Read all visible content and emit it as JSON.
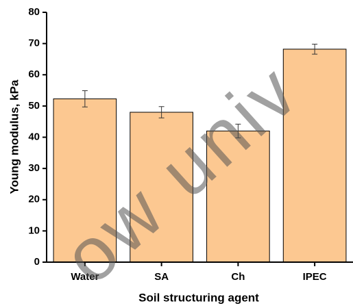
{
  "chart_data": {
    "type": "bar",
    "x_label": "Soil structuring agent",
    "y_label": "Young modulus, kPa",
    "categories": [
      "Water",
      "SA",
      "Ch",
      "IPEC"
    ],
    "values": [
      52.3,
      48,
      42,
      68.2
    ],
    "errors": [
      2.6,
      1.8,
      2.2,
      1.6
    ],
    "color": "#fcc891",
    "ylim": [
      0,
      80
    ],
    "yticks": [
      0,
      10,
      20,
      30,
      40,
      50,
      60,
      70,
      80
    ],
    "grid": false,
    "watermark": "ow univ"
  }
}
